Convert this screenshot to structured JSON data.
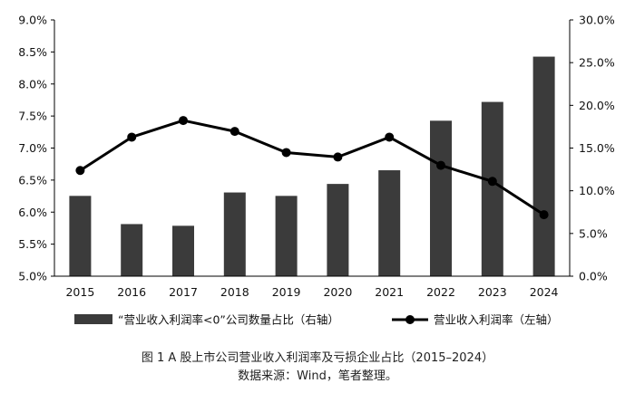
{
  "chart_data": {
    "type": "bar+line",
    "categories": [
      "2015",
      "2016",
      "2017",
      "2018",
      "2019",
      "2020",
      "2021",
      "2022",
      "2023",
      "2024"
    ],
    "series": [
      {
        "name": "“营业收入利润率<0”公司数量占比（右轴）",
        "type": "bar",
        "axis": "right",
        "unit": "%",
        "values": [
          9.4,
          6.1,
          5.9,
          9.8,
          9.4,
          10.8,
          12.4,
          18.2,
          20.4,
          25.7
        ]
      },
      {
        "name": "营业收入利润率（左轴）",
        "type": "line",
        "axis": "left",
        "unit": "%",
        "values": [
          6.65,
          7.17,
          7.43,
          7.26,
          6.93,
          6.86,
          7.17,
          6.73,
          6.48,
          5.96
        ]
      }
    ],
    "y_left": {
      "min": 5.0,
      "max": 9.0,
      "ticks": [
        "5.0%",
        "5.5%",
        "6.0%",
        "6.5%",
        "7.0%",
        "7.5%",
        "8.0%",
        "8.5%",
        "9.0%"
      ]
    },
    "y_right": {
      "min": 0,
      "max": 30,
      "ticks": [
        "0.0%",
        "5.0%",
        "10.0%",
        "15.0%",
        "20.0%",
        "25.0%",
        "30.0%"
      ]
    },
    "grid": false,
    "legend_position": "bottom",
    "colors": {
      "bar": "#3b3b3b",
      "line": "#000000",
      "axis": "#000000"
    }
  },
  "caption": {
    "title": "图 1 A 股上市公司营业收入利润率及亏损企业占比（2015–2024）",
    "source": "数据来源：Wind，笔者整理。"
  }
}
